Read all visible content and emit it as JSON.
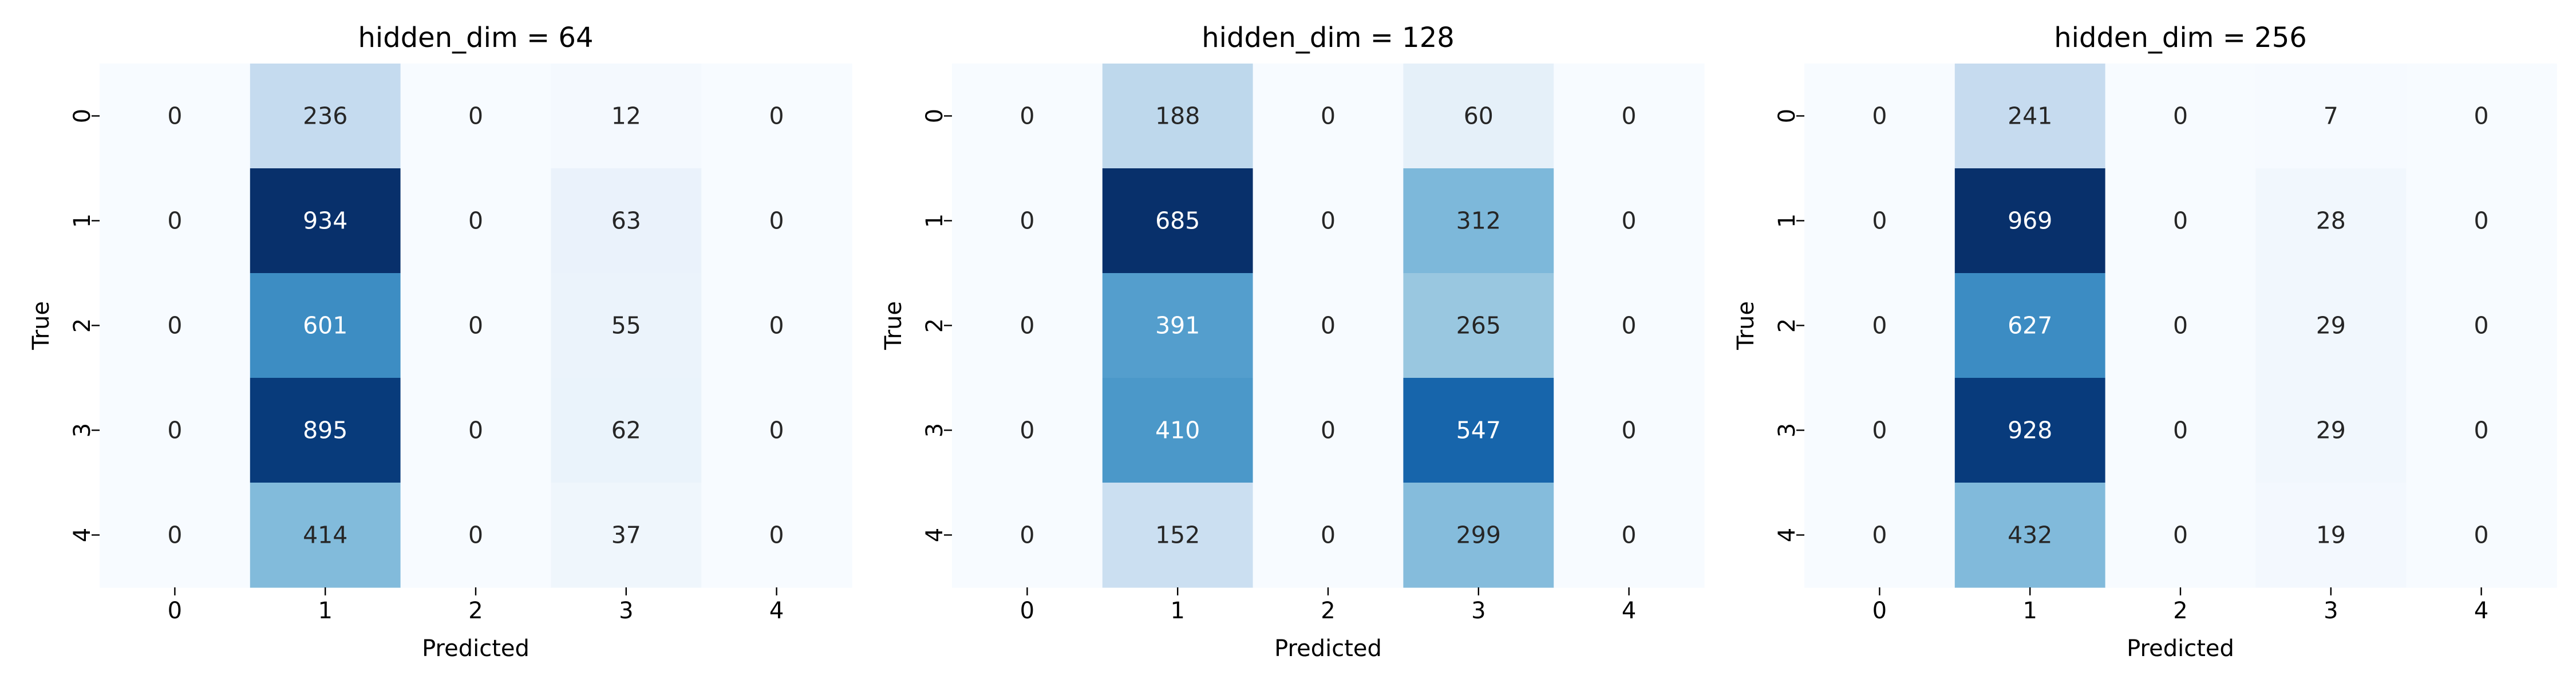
{
  "chart_data": [
    {
      "type": "heatmap",
      "title": "hidden_dim = 64",
      "xlabel": "Predicted",
      "ylabel": "True",
      "x_categories": [
        "0",
        "1",
        "2",
        "3",
        "4"
      ],
      "y_categories": [
        "0",
        "1",
        "2",
        "3",
        "4"
      ],
      "values": [
        [
          0,
          236,
          0,
          12,
          0
        ],
        [
          0,
          934,
          0,
          63,
          0
        ],
        [
          0,
          601,
          0,
          55,
          0
        ],
        [
          0,
          895,
          0,
          62,
          0
        ],
        [
          0,
          414,
          0,
          37,
          0
        ]
      ],
      "colormap": "Blues",
      "colorbar": false
    },
    {
      "type": "heatmap",
      "title": "hidden_dim = 128",
      "xlabel": "Predicted",
      "ylabel": "True",
      "x_categories": [
        "0",
        "1",
        "2",
        "3",
        "4"
      ],
      "y_categories": [
        "0",
        "1",
        "2",
        "3",
        "4"
      ],
      "values": [
        [
          0,
          188,
          0,
          60,
          0
        ],
        [
          0,
          685,
          0,
          312,
          0
        ],
        [
          0,
          391,
          0,
          265,
          0
        ],
        [
          0,
          410,
          0,
          547,
          0
        ],
        [
          0,
          152,
          0,
          299,
          0
        ]
      ],
      "colormap": "Blues",
      "colorbar": false
    },
    {
      "type": "heatmap",
      "title": "hidden_dim = 256",
      "xlabel": "Predicted",
      "ylabel": "True",
      "x_categories": [
        "0",
        "1",
        "2",
        "3",
        "4"
      ],
      "y_categories": [
        "0",
        "1",
        "2",
        "3",
        "4"
      ],
      "values": [
        [
          0,
          241,
          0,
          7,
          0
        ],
        [
          0,
          969,
          0,
          28,
          0
        ],
        [
          0,
          627,
          0,
          29,
          0
        ],
        [
          0,
          928,
          0,
          29,
          0
        ],
        [
          0,
          432,
          0,
          19,
          0
        ]
      ],
      "colormap": "Blues",
      "colorbar": false
    }
  ]
}
